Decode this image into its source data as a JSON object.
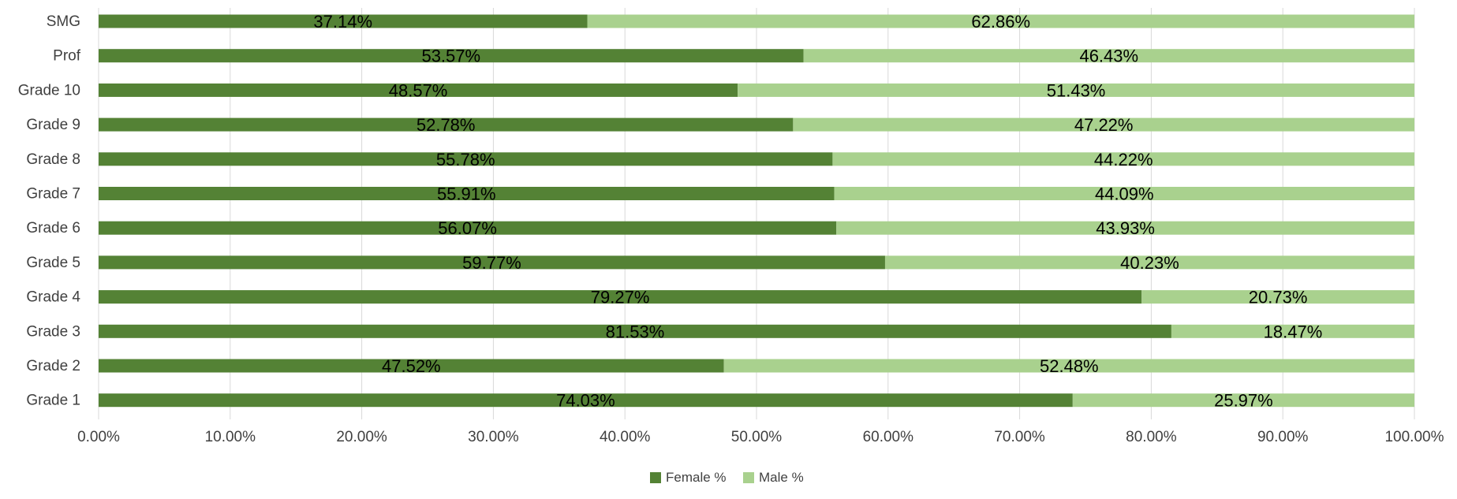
{
  "chart_data": {
    "type": "bar",
    "orientation": "horizontal",
    "stacked": true,
    "title": "",
    "xlabel": "",
    "ylabel": "",
    "categories": [
      "SMG",
      "Prof",
      "Grade 10",
      "Grade 9",
      "Grade 8",
      "Grade 7",
      "Grade 6",
      "Grade 5",
      "Grade 4",
      "Grade 3",
      "Grade 2",
      "Grade 1"
    ],
    "series": [
      {
        "name": "Female %",
        "color": "#548235",
        "values": [
          37.14,
          53.57,
          48.57,
          52.78,
          55.78,
          55.91,
          56.07,
          59.77,
          79.27,
          81.53,
          47.52,
          74.03
        ],
        "labels": [
          "37.14%",
          "53.57%",
          "48.57%",
          "52.78%",
          "55.78%",
          "55.91%",
          "56.07%",
          "59.77%",
          "79.27%",
          "81.53%",
          "47.52%",
          "74.03%"
        ]
      },
      {
        "name": "Male %",
        "color": "#a9d18e",
        "values": [
          62.86,
          46.43,
          51.43,
          47.22,
          44.22,
          44.09,
          43.93,
          40.23,
          20.73,
          18.47,
          52.48,
          25.97
        ],
        "labels": [
          "62.86%",
          "46.43%",
          "51.43%",
          "47.22%",
          "44.22%",
          "44.09%",
          "43.93%",
          "40.23%",
          "20.73%",
          "18.47%",
          "52.48%",
          "25.97%"
        ]
      }
    ],
    "xlim": [
      0,
      100
    ],
    "x_ticks": [
      0,
      10,
      20,
      30,
      40,
      50,
      60,
      70,
      80,
      90,
      100
    ],
    "x_tick_labels": [
      "0.00%",
      "10.00%",
      "20.00%",
      "30.00%",
      "40.00%",
      "50.00%",
      "60.00%",
      "70.00%",
      "80.00%",
      "90.00%",
      "100.00%"
    ],
    "grid": true,
    "legend_position": "bottom"
  }
}
